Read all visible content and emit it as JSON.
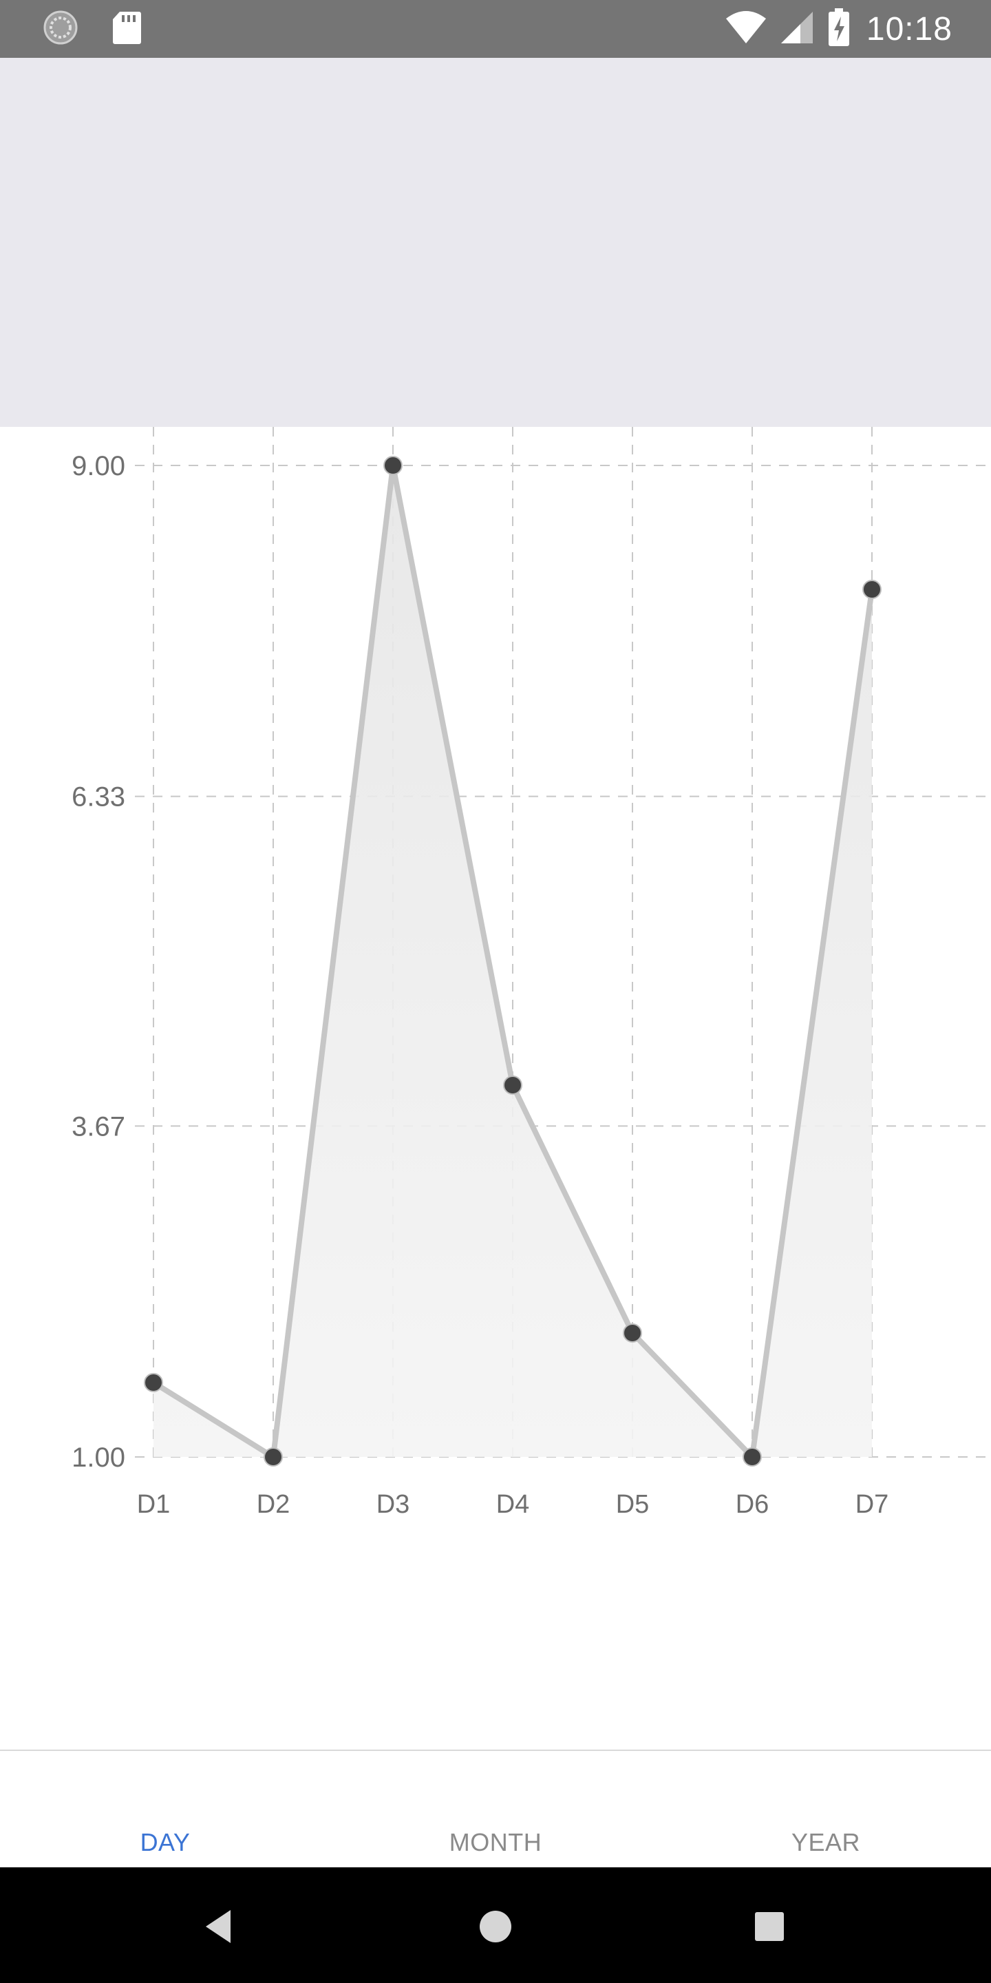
{
  "status_bar": {
    "time": "10:18",
    "icons": [
      "sync-icon",
      "sd-card-icon",
      "wifi-icon",
      "cell-signal-icon",
      "battery-charging-icon"
    ]
  },
  "chart_data": {
    "type": "line",
    "categories": [
      "D1",
      "D2",
      "D3",
      "D4",
      "D5",
      "D6",
      "D7"
    ],
    "series": [
      {
        "values": [
          1.6,
          1.0,
          9.0,
          4.0,
          2.0,
          1.0,
          8.0
        ]
      }
    ],
    "yticks": [
      "9.00",
      "6.33",
      "3.67",
      "1.00"
    ],
    "ylim": [
      1.0,
      9.0
    ],
    "grid": true,
    "fill": true,
    "colors": {
      "line": "#c6c6c6",
      "fill": "#f0f0f0",
      "point": "#424242",
      "grid": "#c8c8c8",
      "tick": "#6f6f6f"
    }
  },
  "tabs": [
    {
      "label": "DAY",
      "active": true
    },
    {
      "label": "MONTH",
      "active": false
    },
    {
      "label": "YEAR",
      "active": false
    }
  ],
  "nav": {
    "back_icon": "back-triangle-icon",
    "home_icon": "home-circle-icon",
    "recents_icon": "recents-square-icon"
  }
}
